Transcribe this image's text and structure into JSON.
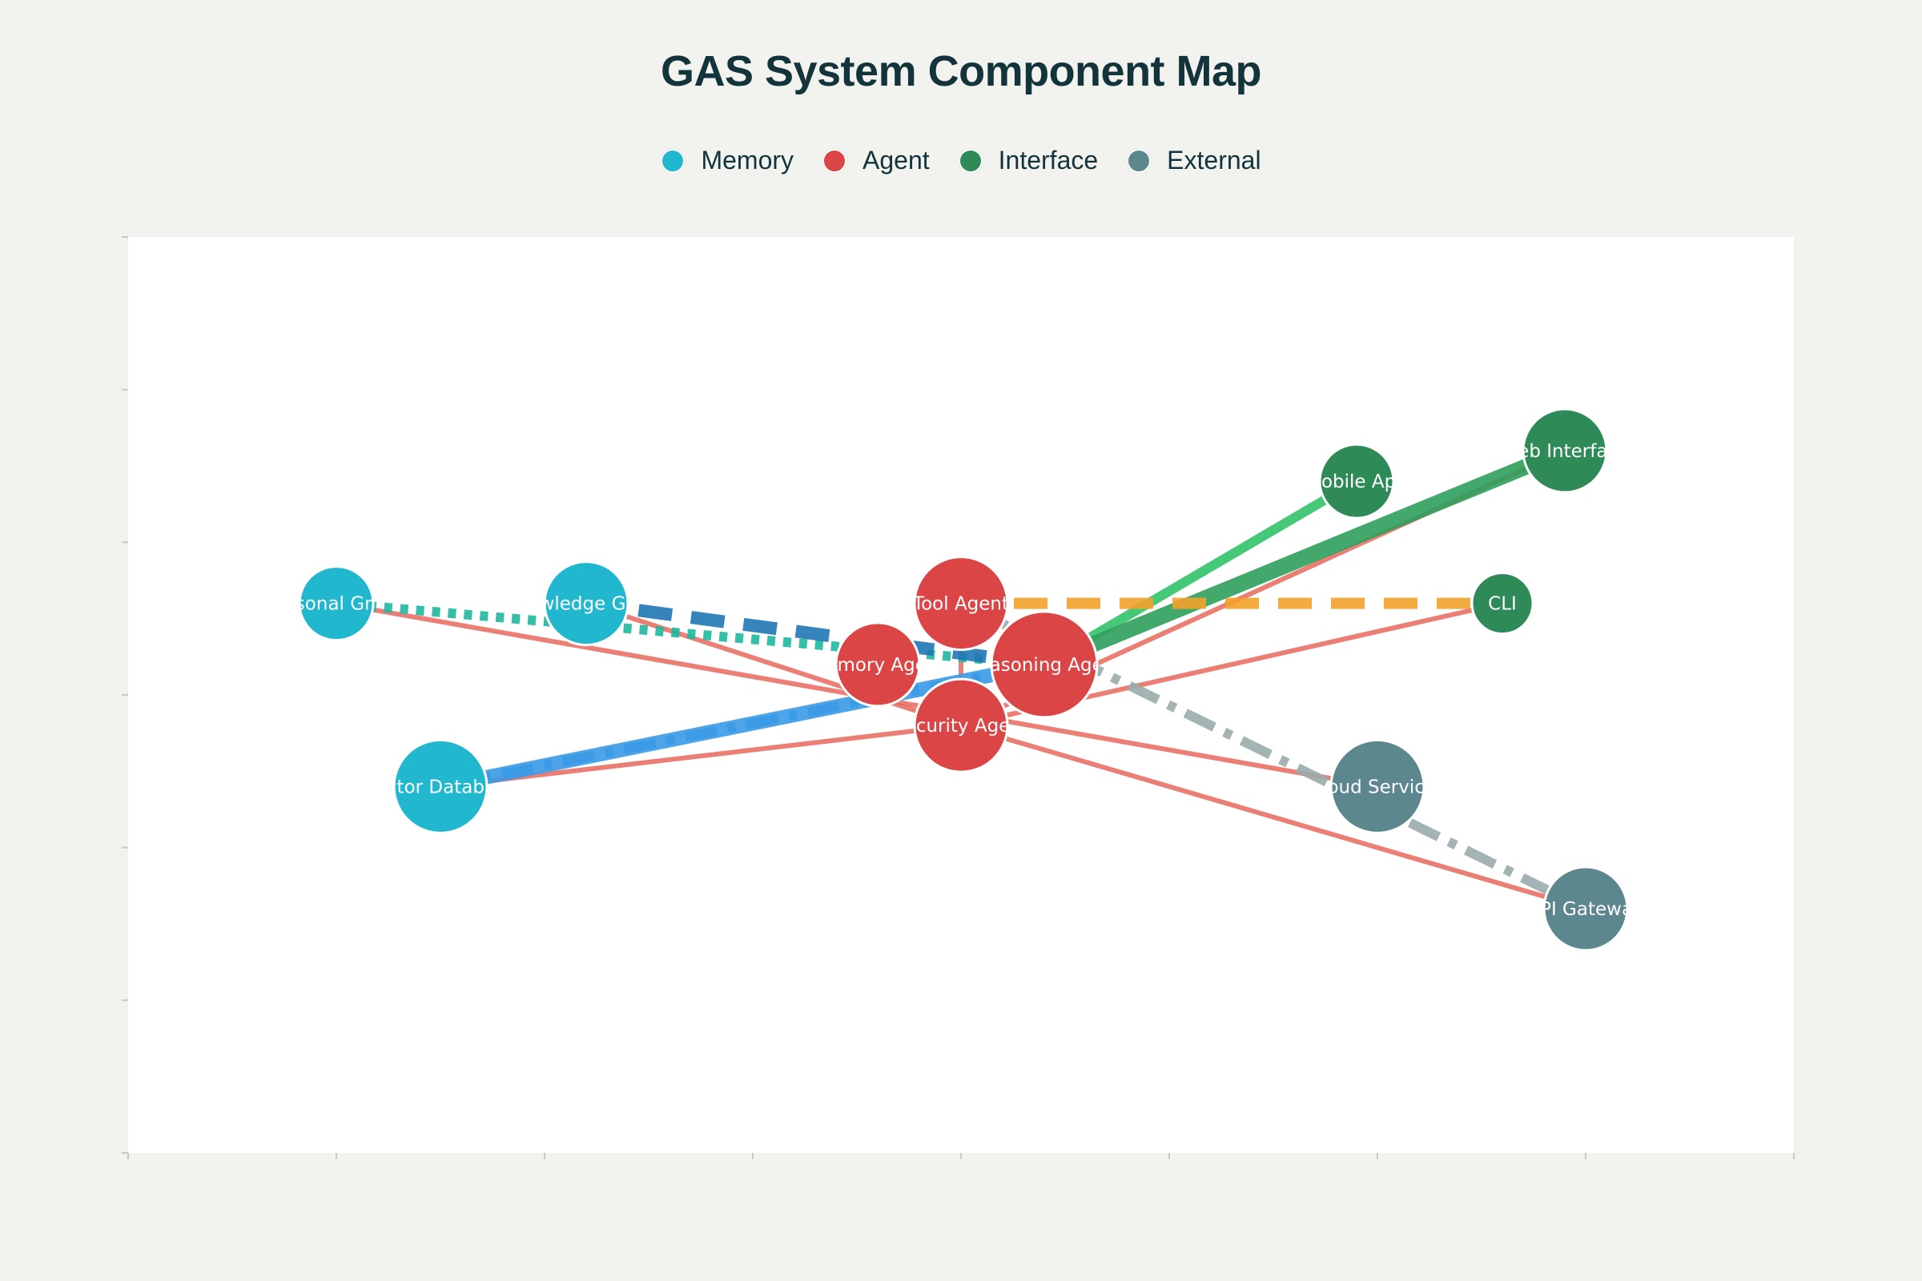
{
  "title": "GAS System Component Map",
  "categories": [
    {
      "key": "memory",
      "label": "Memory",
      "color": "#21b8cf"
    },
    {
      "key": "agent",
      "label": "Agent",
      "color": "#db4545"
    },
    {
      "key": "interface",
      "label": "Interface",
      "color": "#2e8b57"
    },
    {
      "key": "external",
      "label": "External",
      "color": "#5d878f"
    }
  ],
  "nodes": [
    {
      "id": "personal-graph",
      "label": "Personal Graph",
      "category": "memory",
      "x": 2,
      "y": 5.6,
      "size": "small"
    },
    {
      "id": "knowledge-graph",
      "label": "Knowledge Graph",
      "category": "memory",
      "x": 3.2,
      "y": 5.6,
      "size": "medium"
    },
    {
      "id": "vector-database",
      "label": "Vector Database",
      "category": "memory",
      "x": 2.5,
      "y": 4.4,
      "size": "large"
    },
    {
      "id": "memory-agent",
      "label": "Memory Agent",
      "category": "agent",
      "x": 4.6,
      "y": 5.2,
      "size": "medium"
    },
    {
      "id": "tool-agent",
      "label": "Tool Agent",
      "category": "agent",
      "x": 5,
      "y": 5.6,
      "size": "large"
    },
    {
      "id": "reasoning-agent",
      "label": "Reasoning Agent",
      "category": "agent",
      "x": 5.4,
      "y": 5.2,
      "size": "xlarge"
    },
    {
      "id": "security-agent",
      "label": "Security Agent",
      "category": "agent",
      "x": 5,
      "y": 4.8,
      "size": "large"
    },
    {
      "id": "mobile-app",
      "label": "Mobile App",
      "category": "interface",
      "x": 6.9,
      "y": 6.4,
      "size": "small"
    },
    {
      "id": "web-interface",
      "label": "Web Interface",
      "category": "interface",
      "x": 7.9,
      "y": 6.6,
      "size": "medium"
    },
    {
      "id": "cli",
      "label": "CLI",
      "category": "interface",
      "x": 7.6,
      "y": 5.6,
      "size": "xsmall"
    },
    {
      "id": "cloud-services",
      "label": "Cloud Services",
      "category": "external",
      "x": 7,
      "y": 4.4,
      "size": "large"
    },
    {
      "id": "api-gateway",
      "label": "API Gateway",
      "category": "external",
      "x": 8,
      "y": 3.6,
      "size": "medium"
    }
  ],
  "edges": [
    {
      "from": "personal-graph",
      "to": "reasoning-agent",
      "kind": "personal-dotted"
    },
    {
      "from": "knowledge-graph",
      "to": "reasoning-agent",
      "kind": "knowledge-dashed"
    },
    {
      "from": "vector-database",
      "to": "reasoning-agent",
      "kind": "vector-solid"
    },
    {
      "from": "vector-database",
      "to": "reasoning-agent",
      "kind": "vector-dashdot"
    },
    {
      "from": "reasoning-agent",
      "to": "mobile-app",
      "kind": "mobile-solid"
    },
    {
      "from": "reasoning-agent",
      "to": "web-interface",
      "kind": "web-solid"
    },
    {
      "from": "tool-agent",
      "to": "cli",
      "kind": "cli-dashed"
    },
    {
      "from": "tool-agent",
      "to": "api-gateway",
      "kind": "api-dashdot"
    },
    {
      "from": "personal-graph",
      "to": "cloud-services",
      "kind": "security"
    },
    {
      "from": "knowledge-graph",
      "to": "security-agent",
      "kind": "security"
    },
    {
      "from": "vector-database",
      "to": "security-agent",
      "kind": "security"
    },
    {
      "from": "security-agent",
      "to": "api-gateway",
      "kind": "security"
    },
    {
      "from": "security-agent",
      "to": "cli",
      "kind": "security"
    },
    {
      "from": "security-agent",
      "to": "web-interface",
      "kind": "security"
    },
    {
      "from": "tool-agent",
      "to": "security-agent",
      "kind": "security"
    }
  ],
  "edge_styles": {
    "personal-dotted": {
      "color": "#1fb8a0",
      "dash": "dotted"
    },
    "knowledge-dashed": {
      "color": "#1f77b4",
      "dash": "dashed"
    },
    "vector-solid": {
      "color": "#3a9ae6",
      "dash": "solid"
    },
    "vector-dashdot": {
      "color": "#3a9ae6",
      "dash": "dashdot"
    },
    "mobile-solid": {
      "color": "#32c26a",
      "dash": "solid"
    },
    "web-solid": {
      "color": "#2e9e5b",
      "dash": "solid"
    },
    "cli-dashed": {
      "color": "#f2a12a",
      "dash": "dashed"
    },
    "api-dashdot": {
      "color": "#9aabab",
      "dash": "dashdot"
    },
    "security": {
      "color": "#e8685e",
      "dash": "solid"
    }
  },
  "axes": {
    "x_range": [
      1,
      9
    ],
    "y_range": [
      2,
      8
    ],
    "x_ticks": 9,
    "y_ticks": 7,
    "grid": false,
    "tick_labels": false
  }
}
